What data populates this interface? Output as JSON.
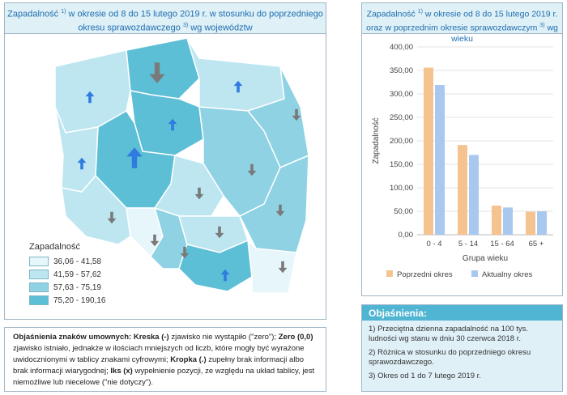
{
  "map": {
    "title_line1": "Zapadalność",
    "title_sup1": "1)",
    "title_line1b": " w okresie od 8 do 15 lutego 2019 r. w stosunku do poprzedniego",
    "title_line2a": "okresu sprawozdawczego",
    "title_sup2": "3)",
    "title_line2b": " wg województw",
    "legend_title": "Zapadalność",
    "legend": [
      {
        "label": "36,06 - 41,58",
        "color": "#e6f6fb"
      },
      {
        "label": "41,59 - 57,62",
        "color": "#bde6f1"
      },
      {
        "label": "57,63 - 75,19",
        "color": "#8fd2e4"
      },
      {
        "label": "75,20 - 190,16",
        "color": "#5cbfd6"
      }
    ],
    "regions": [
      {
        "name": "pomorskie",
        "color": "#5cbfd6",
        "arrow": "down-gray-large"
      },
      {
        "name": "zachodniopomorskie",
        "color": "#bde6f1",
        "arrow": "up-blue"
      },
      {
        "name": "warmińsko-mazurskie",
        "color": "#bde6f1",
        "arrow": "up-blue"
      },
      {
        "name": "podlaskie",
        "color": "#8fd2e4",
        "arrow": "down-gray"
      },
      {
        "name": "kujawsko-pomorskie",
        "color": "#5cbfd6",
        "arrow": "up-blue"
      },
      {
        "name": "lubuskie",
        "color": "#bde6f1",
        "arrow": "up-blue"
      },
      {
        "name": "wielkopolskie",
        "color": "#5cbfd6",
        "arrow": "up-blue-large"
      },
      {
        "name": "mazowieckie",
        "color": "#8fd2e4",
        "arrow": "down-gray"
      },
      {
        "name": "łódzkie",
        "color": "#bde6f1",
        "arrow": "down-gray"
      },
      {
        "name": "lubelskie",
        "color": "#8fd2e4",
        "arrow": "down-gray"
      },
      {
        "name": "dolnośląskie",
        "color": "#bde6f1",
        "arrow": "down-gray"
      },
      {
        "name": "opolskie",
        "color": "#e6f6fb",
        "arrow": "down-gray"
      },
      {
        "name": "śląskie",
        "color": "#8fd2e4",
        "arrow": "down-gray"
      },
      {
        "name": "świętokrzyskie",
        "color": "#bde6f1",
        "arrow": "down-gray"
      },
      {
        "name": "małopolskie",
        "color": "#5cbfd6",
        "arrow": "up-blue"
      },
      {
        "name": "podkarpackie",
        "color": "#e6f6fb",
        "arrow": "down-gray"
      }
    ]
  },
  "chart": {
    "title_line1a": "Zapadalność",
    "title_sup1": "1)",
    "title_line1b": " w okresie od 8 do 15 lutego 2019 r.",
    "title_line2a": "oraz w poprzednim okresie sprawozdawczym",
    "title_sup2": "3)",
    "title_line2b": " wg wieku"
  },
  "chart_data": {
    "type": "bar",
    "categories": [
      "0 - 4",
      "5 - 14",
      "15 - 64",
      "65 +"
    ],
    "series": [
      {
        "name": "Poprzedni okres",
        "color": "#f5c38f",
        "values": [
          356,
          191,
          62,
          49
        ]
      },
      {
        "name": "Aktualny okres",
        "color": "#a8c8f0",
        "values": [
          319,
          170,
          58,
          50
        ]
      }
    ],
    "xlabel": "Grupa wieku",
    "ylabel": "Zapadalność",
    "ylim": [
      0,
      400
    ],
    "yticks": [
      "0,00",
      "50,00",
      "100,00",
      "150,00",
      "200,00",
      "250,00",
      "300,00",
      "350,00",
      "400,00"
    ],
    "legend_position": "bottom",
    "grid": true
  },
  "notes": {
    "header": "Objaśnienia:",
    "items": [
      "1) Przeciętna dzienna zapadalność na 100 tys. ludności wg stanu w dniu 30 czerwca 2018 r.",
      "2) Różnica w stosunku do poprzedniego okresu sprawozdawczego.",
      "3) Okres od 1 do 7 lutego 2019 r."
    ]
  },
  "symbols": {
    "title": "Objaśnienia znaków umownych:",
    "t1": "Kreska (-)",
    "d1": " zjawisko nie wystąpiło (\"zero\"); ",
    "t2": "Zero (0,0)",
    "d2": " zjawisko istniało, jednakże w ilościach mniejszych od liczb, które mogły być wyrażone uwidocznionymi w tablicy znakami cyfrowymi; ",
    "t3": "Kropka (.)",
    "d3": " zupełny brak informacji albo brak informacji wiarygodnej; ",
    "t4": "Iks (x)",
    "d4": " wypełnienie pozycji, ze względu na układ tablicy, jest niemożliwe lub niecelowe (\"nie dotyczy\")."
  }
}
